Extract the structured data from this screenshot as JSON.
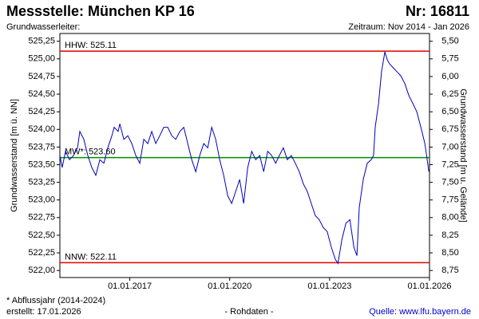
{
  "chart_data": {
    "type": "line",
    "title": "Messstelle: München KP 16",
    "number": "Nr: 16811",
    "subtitle": "Grundwasserleiter:",
    "period": "Zeitraum: Nov 2014 - Jan 2026",
    "ylabel": "Grundwasserstand [m ü. NN]",
    "y2label": "Grundwasserstand [m u. Gelände]",
    "footnote": "* Abflussjahr (2014-2024)",
    "created": "erstellt:  17.01.2026",
    "data_note": "- Rohdaten -",
    "source": "Quelle: www.lfu.bayern.de",
    "xlim": [
      2014.9,
      2026.0
    ],
    "xticks": [
      {
        "value": 2017,
        "label": "01.01.2017"
      },
      {
        "value": 2020,
        "label": "01.01.2020"
      },
      {
        "value": 2023,
        "label": "01.01.2023"
      },
      {
        "value": 2026,
        "label": "01.01.2026"
      }
    ],
    "ylim": [
      521.9,
      525.36
    ],
    "yticks": [
      {
        "value": 522.0,
        "label": "522,00"
      },
      {
        "value": 522.25,
        "label": "522,25"
      },
      {
        "value": 522.5,
        "label": "522,50"
      },
      {
        "value": 522.75,
        "label": "522,75"
      },
      {
        "value": 523.0,
        "label": "523,00"
      },
      {
        "value": 523.25,
        "label": "523,25"
      },
      {
        "value": 523.5,
        "label": "523,50"
      },
      {
        "value": 523.75,
        "label": "523,75"
      },
      {
        "value": 524.0,
        "label": "524,00"
      },
      {
        "value": 524.25,
        "label": "524,25"
      },
      {
        "value": 524.5,
        "label": "524,50"
      },
      {
        "value": 524.75,
        "label": "524,75"
      },
      {
        "value": 525.0,
        "label": "525,00"
      },
      {
        "value": 525.25,
        "label": "525,25"
      }
    ],
    "y2lim": [
      8.85,
      5.39
    ],
    "y2ticks": [
      {
        "value": 5.5,
        "label": "5,50"
      },
      {
        "value": 5.75,
        "label": "5,75"
      },
      {
        "value": 6.0,
        "label": "6,00"
      },
      {
        "value": 6.25,
        "label": "6,25"
      },
      {
        "value": 6.5,
        "label": "6,50"
      },
      {
        "value": 6.75,
        "label": "6,75"
      },
      {
        "value": 7.0,
        "label": "7,00"
      },
      {
        "value": 7.25,
        "label": "7,25"
      },
      {
        "value": 7.5,
        "label": "7,50"
      },
      {
        "value": 7.75,
        "label": "7,75"
      },
      {
        "value": 8.0,
        "label": "8,00"
      },
      {
        "value": 8.25,
        "label": "8,25"
      },
      {
        "value": 8.5,
        "label": "8,50"
      },
      {
        "value": 8.75,
        "label": "8,75"
      }
    ],
    "reference_lines": [
      {
        "label": "HHW: 525.11",
        "value": 525.11,
        "color": "#e00000"
      },
      {
        "label": "MW*: 523.60",
        "value": 523.6,
        "color": "#009000"
      },
      {
        "label": "NNW: 522.11",
        "value": 522.11,
        "color": "#e00000"
      }
    ],
    "series": [
      {
        "color": "#0000c0",
        "x": [
          2014.9,
          2014.97,
          2015.07,
          2015.19,
          2015.31,
          2015.43,
          2015.5,
          2015.62,
          2015.74,
          2015.86,
          2015.98,
          2016.1,
          2016.22,
          2016.34,
          2016.46,
          2016.53,
          2016.65,
          2016.7,
          2016.82,
          2016.94,
          2017.06,
          2017.18,
          2017.3,
          2017.42,
          2017.54,
          2017.66,
          2017.78,
          2017.9,
          2018.02,
          2018.14,
          2018.26,
          2018.38,
          2018.5,
          2018.62,
          2018.74,
          2018.86,
          2018.98,
          2019.1,
          2019.22,
          2019.34,
          2019.46,
          2019.58,
          2019.7,
          2019.82,
          2019.94,
          2020.06,
          2020.18,
          2020.3,
          2020.42,
          2020.54,
          2020.66,
          2020.78,
          2020.9,
          2021.02,
          2021.14,
          2021.26,
          2021.38,
          2021.49,
          2021.61,
          2021.73,
          2021.85,
          2021.97,
          2022.09,
          2022.21,
          2022.33,
          2022.45,
          2022.57,
          2022.69,
          2022.81,
          2022.93,
          2023.05,
          2023.17,
          2023.25,
          2023.37,
          2023.49,
          2023.61,
          2023.73,
          2023.82,
          2023.89,
          2024.01,
          2024.13,
          2024.25,
          2024.32,
          2024.37,
          2024.47,
          2024.56,
          2024.66,
          2024.73,
          2024.8,
          2024.9,
          2025.02,
          2025.14,
          2025.26,
          2025.38,
          2025.5,
          2025.62,
          2025.74,
          2025.86,
          2025.93,
          2025.98
        ],
        "values": [
          523.63,
          523.46,
          523.69,
          523.57,
          523.63,
          523.74,
          523.97,
          523.86,
          523.63,
          523.46,
          523.35,
          523.57,
          523.52,
          523.74,
          523.91,
          524.03,
          523.97,
          524.08,
          523.86,
          523.91,
          523.8,
          523.63,
          523.52,
          523.86,
          523.8,
          523.97,
          523.8,
          523.91,
          524.03,
          524.03,
          523.91,
          523.86,
          523.97,
          524.03,
          523.8,
          523.57,
          523.4,
          523.63,
          523.8,
          523.74,
          524.03,
          523.86,
          523.57,
          523.35,
          523.06,
          522.95,
          523.12,
          523.29,
          522.95,
          523.46,
          523.69,
          523.57,
          523.63,
          523.4,
          523.69,
          523.63,
          523.52,
          523.63,
          523.74,
          523.57,
          523.63,
          523.52,
          523.4,
          523.23,
          523.12,
          522.95,
          522.78,
          522.72,
          522.61,
          522.55,
          522.33,
          522.16,
          522.1,
          522.44,
          522.67,
          522.72,
          522.33,
          522.21,
          522.89,
          523.29,
          523.52,
          523.57,
          523.63,
          524.03,
          524.37,
          524.82,
          525.1,
          524.99,
          524.93,
          524.88,
          524.82,
          524.76,
          524.65,
          524.48,
          524.37,
          524.25,
          524.03,
          523.8,
          523.57,
          523.4
        ]
      }
    ]
  }
}
